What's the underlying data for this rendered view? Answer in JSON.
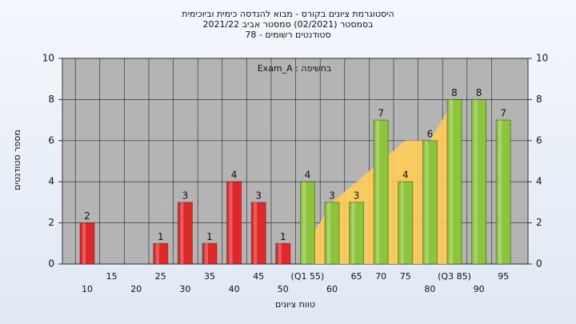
{
  "chart_data": {
    "type": "bar",
    "title": "היסטוגרמת ציונים בקורס - מבוא להנדסה כימית וביוכימית",
    "subtitle": "בסמסטר  (02/2021)  סמסטר אביב 2021/22",
    "subtitle2": "סטודנטים רשומים - 78",
    "annotation": "בחשיפה : Exam_A",
    "ylabel": "מספר סטודנטים",
    "xlabel": "טווח ציונים",
    "categories": [
      "10",
      "15",
      "20",
      "25",
      "30",
      "35",
      "40",
      "45",
      "50",
      "(Q1 55)",
      "60",
      "65",
      "70",
      "75",
      "80",
      "(Q3 85)",
      "90",
      "95"
    ],
    "values": [
      2,
      0,
      0,
      1,
      3,
      1,
      4,
      3,
      1,
      4,
      3,
      3,
      7,
      4,
      6,
      8,
      8,
      7
    ],
    "colors": [
      "#e02828",
      "#e02828",
      "#e02828",
      "#e02828",
      "#e02828",
      "#e02828",
      "#e02828",
      "#e02828",
      "#e02828",
      "#8cc43c",
      "#8cc43c",
      "#8cc43c",
      "#8cc43c",
      "#8cc43c",
      "#8cc43c",
      "#8cc43c",
      "#8cc43c",
      "#8cc43c"
    ],
    "area": {
      "color": "#ffcc55",
      "values": [
        null,
        null,
        null,
        null,
        null,
        null,
        null,
        null,
        null,
        1,
        3,
        4,
        5,
        6,
        6,
        8,
        null,
        null
      ]
    },
    "ylim": [
      0,
      10
    ],
    "yticks": [
      0,
      2,
      4,
      6,
      8,
      10
    ],
    "y2lim": [
      0,
      10
    ],
    "y2ticks": [
      0,
      2,
      4,
      6,
      8,
      10
    ],
    "grid": true
  }
}
